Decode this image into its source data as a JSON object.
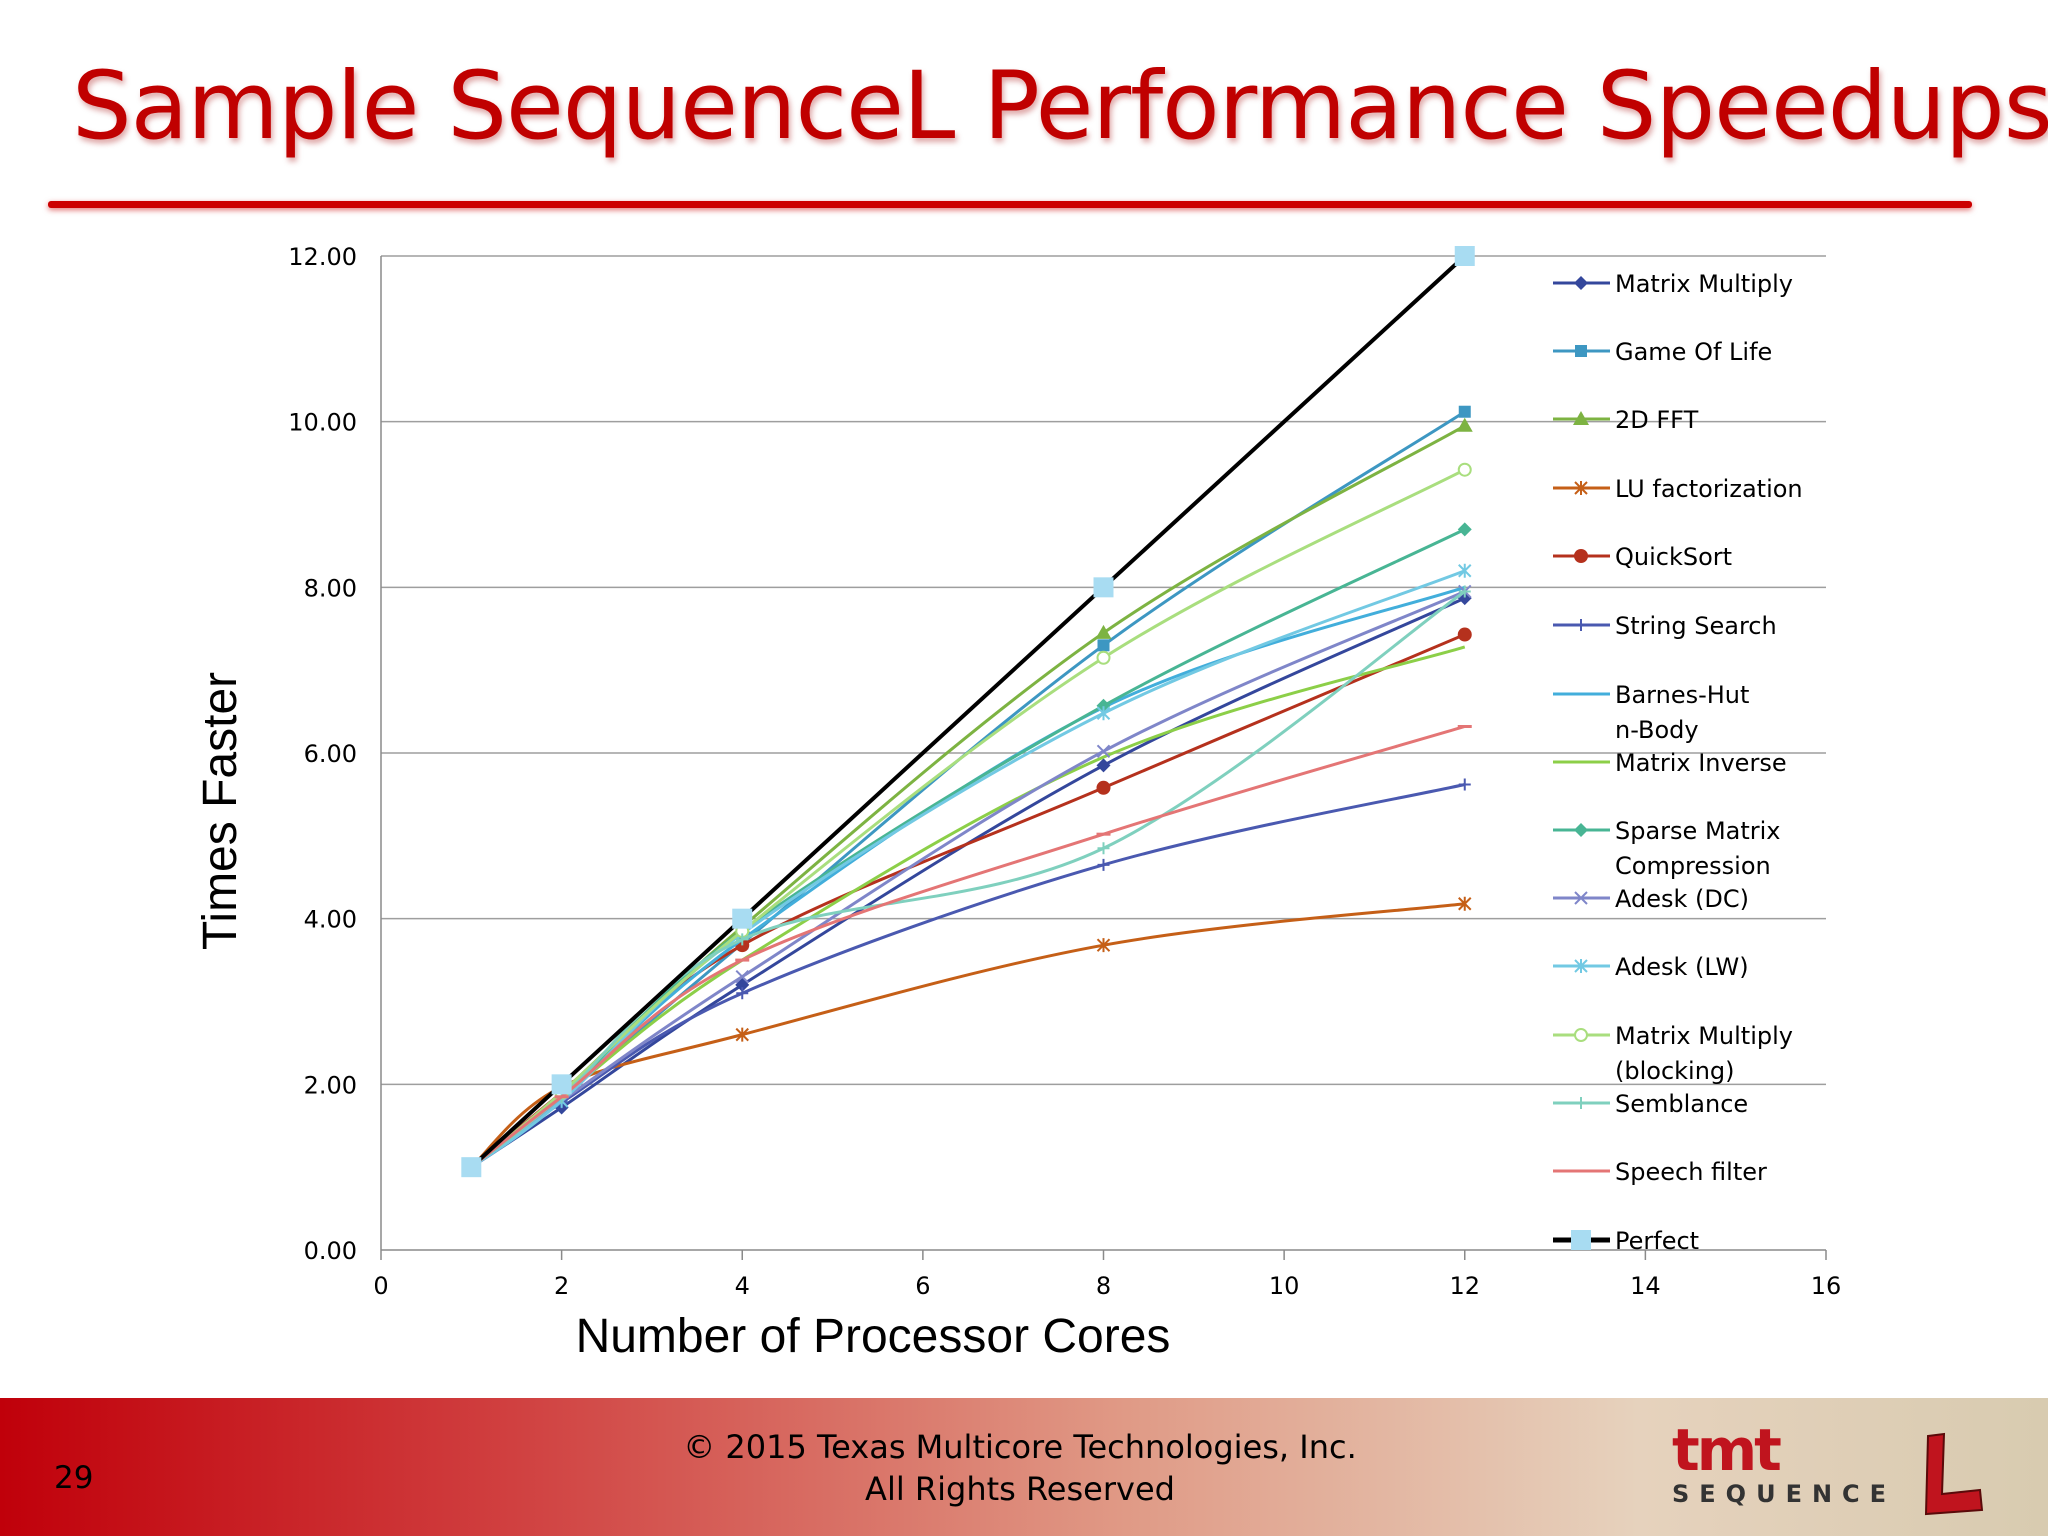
{
  "slide": {
    "title": "Sample SequenceL Performance Speedups",
    "page_number": "29",
    "copyright_line1": "© 2015 Texas Multicore Technologies, Inc.",
    "copyright_line2": "All Rights Reserved",
    "logo_text": "tmt",
    "logo_subtext": "SEQUENCE",
    "accent_color": "#c00000"
  },
  "chart_data": {
    "type": "line",
    "title": "",
    "xlabel": "Number of Processor Cores",
    "ylabel": "Times Faster",
    "xlim": [
      0,
      16
    ],
    "ylim": [
      0,
      12
    ],
    "x_ticks": [
      0,
      2,
      4,
      6,
      8,
      10,
      12,
      14,
      16
    ],
    "y_ticks": [
      0,
      2,
      4,
      6,
      8,
      10,
      12
    ],
    "y_tick_labels": [
      "0.00",
      "2.00",
      "4.00",
      "6.00",
      "8.00",
      "10.00",
      "12.00"
    ],
    "grid": "horizontal",
    "legend_position": "right",
    "series": [
      {
        "name": "Matrix Multiply",
        "color": "#34479c",
        "marker": "diamond",
        "x": [
          1,
          2,
          4,
          8,
          12
        ],
        "y": [
          1,
          1.72,
          3.2,
          5.85,
          7.87
        ]
      },
      {
        "name": "Game Of Life",
        "color": "#3d97c2",
        "marker": "square",
        "x": [
          1,
          2,
          4,
          8,
          12
        ],
        "y": [
          1,
          1.85,
          3.7,
          7.3,
          10.12
        ]
      },
      {
        "name": "2D FFT",
        "color": "#7db342",
        "marker": "triangle",
        "x": [
          1,
          2,
          4,
          8,
          12
        ],
        "y": [
          1,
          1.9,
          3.9,
          7.45,
          9.95
        ]
      },
      {
        "name": "LU factorization",
        "color": "#c55f17",
        "marker": "asterisk",
        "x": [
          1,
          2,
          4,
          8,
          12
        ],
        "y": [
          1,
          1.97,
          2.6,
          3.68,
          4.18
        ]
      },
      {
        "name": "QuickSort",
        "color": "#b5311d",
        "marker": "circle",
        "x": [
          1,
          2,
          4,
          8,
          12
        ],
        "y": [
          1,
          1.9,
          3.68,
          5.58,
          7.43
        ]
      },
      {
        "name": "String Search",
        "color": "#4a59b0",
        "marker": "plus",
        "x": [
          1,
          2,
          4,
          8,
          12
        ],
        "y": [
          1,
          1.78,
          3.1,
          4.65,
          5.62
        ]
      },
      {
        "name": "Barnes-Hut n-Body",
        "color": "#42aedb",
        "marker": "none",
        "x": [
          1,
          2,
          4,
          8,
          12
        ],
        "y": [
          1,
          1.85,
          3.75,
          6.55,
          8.0
        ]
      },
      {
        "name": "Matrix Inverse",
        "color": "#8ccf48",
        "marker": "none",
        "x": [
          1,
          2,
          4,
          8,
          12
        ],
        "y": [
          1,
          1.85,
          3.5,
          5.95,
          7.28
        ]
      },
      {
        "name": "Sparse Matrix Compression",
        "color": "#48b594",
        "marker": "diamond",
        "x": [
          1,
          2,
          4,
          8,
          12
        ],
        "y": [
          1,
          1.85,
          3.85,
          6.57,
          8.7
        ]
      },
      {
        "name": "Adesk (DC)",
        "color": "#7f86c9",
        "marker": "x",
        "x": [
          1,
          2,
          4,
          8,
          12
        ],
        "y": [
          1,
          1.8,
          3.3,
          6.02,
          7.95
        ]
      },
      {
        "name": "Adesk (LW)",
        "color": "#72c9e3",
        "marker": "asterisk",
        "x": [
          1,
          2,
          4,
          8,
          12
        ],
        "y": [
          1,
          1.8,
          3.82,
          6.48,
          8.2
        ]
      },
      {
        "name": "Matrix Multiply (blocking)",
        "color": "#a9de7e",
        "marker": "open-circle",
        "x": [
          1,
          2,
          4,
          8,
          12
        ],
        "y": [
          1,
          1.9,
          3.85,
          7.15,
          9.42
        ]
      },
      {
        "name": "Semblance",
        "color": "#7fd0be",
        "marker": "plus",
        "x": [
          1,
          2,
          4,
          8,
          12
        ],
        "y": [
          1,
          1.85,
          3.75,
          4.85,
          7.95
        ]
      },
      {
        "name": "Speech filter",
        "color": "#e47575",
        "marker": "dash",
        "x": [
          1,
          2,
          4,
          8,
          12
        ],
        "y": [
          1,
          1.85,
          3.5,
          5.02,
          6.32
        ]
      },
      {
        "name": "Perfect",
        "color": "#000000",
        "marker": "square-big",
        "marker_color": "#a8dcf2",
        "x": [
          1,
          2,
          4,
          8,
          12
        ],
        "y": [
          1,
          2,
          4,
          8,
          12
        ]
      }
    ]
  }
}
